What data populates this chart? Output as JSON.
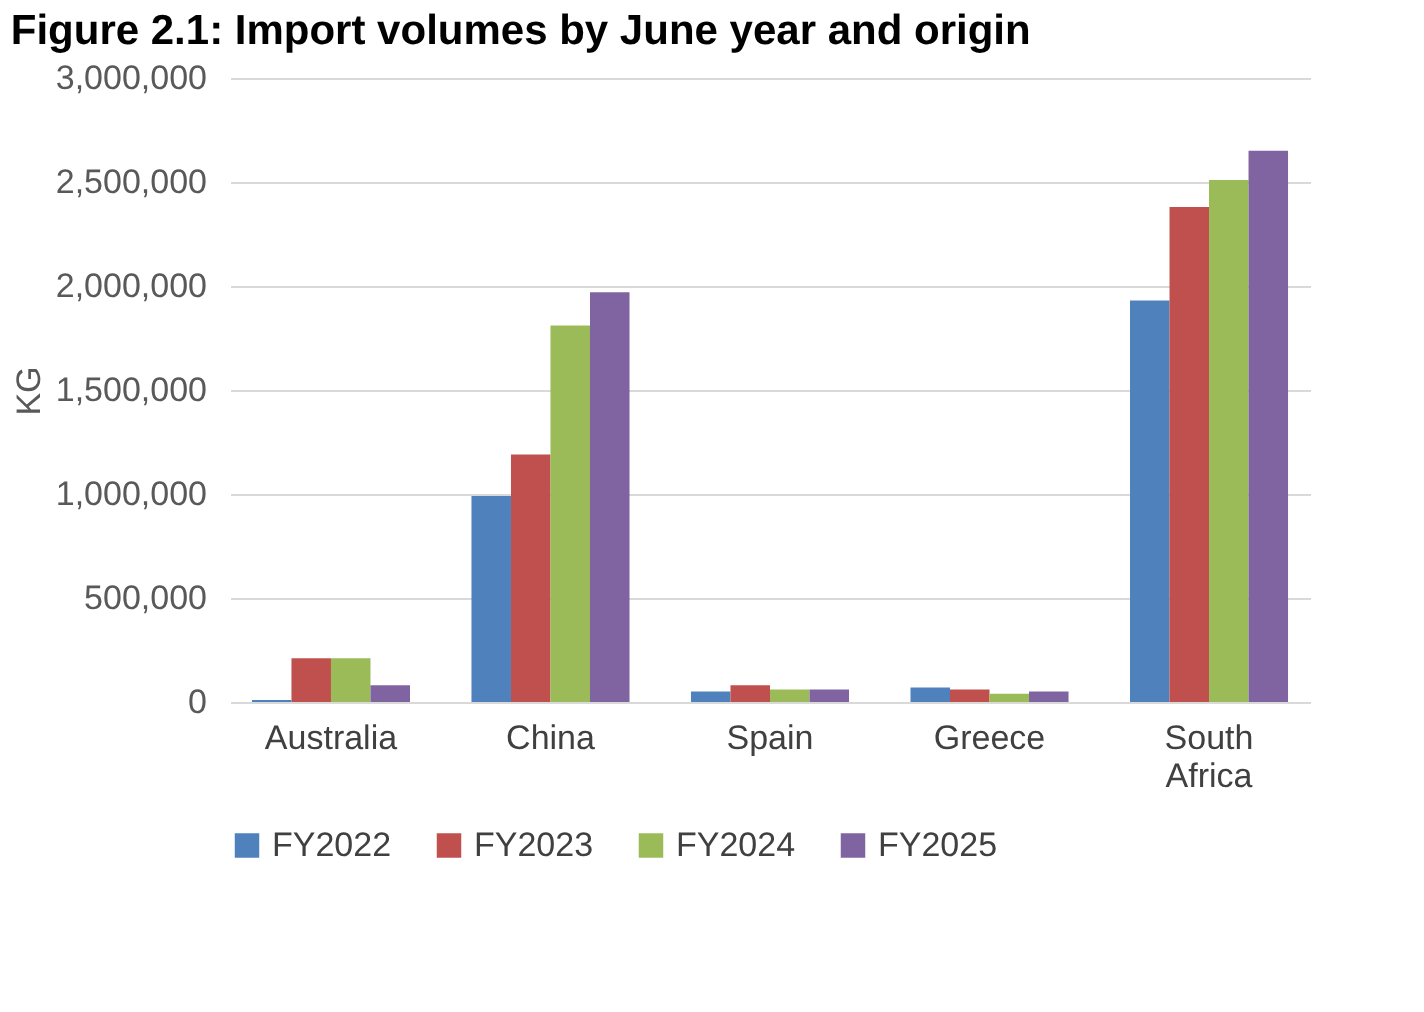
{
  "chart_data": {
    "type": "bar",
    "title": "Figure 2.1:    Import volumes by June year and origin",
    "ylabel": "KG",
    "categories": [
      "Australia",
      "China",
      "Spain",
      "Greece",
      "South Africa"
    ],
    "series": [
      {
        "name": "FY2022",
        "color": "#4f81bd",
        "values": [
          10000,
          990000,
          50000,
          70000,
          1930000
        ]
      },
      {
        "name": "FY2023",
        "color": "#c0504d",
        "values": [
          210000,
          1190000,
          80000,
          60000,
          2380000
        ]
      },
      {
        "name": "FY2024",
        "color": "#9bbb59",
        "values": [
          210000,
          1810000,
          60000,
          40000,
          2510000
        ]
      },
      {
        "name": "FY2025",
        "color": "#8064a2",
        "values": [
          80000,
          1970000,
          60000,
          50000,
          2650000
        ]
      }
    ],
    "ylim": [
      0,
      3000000
    ],
    "yticks": [
      0,
      {
        "value": 500000,
        "label": "500,000"
      },
      {
        "value": 1000000,
        "label": "1,000,000"
      },
      {
        "value": 1500000,
        "label": "1,500,000"
      },
      {
        "value": 2000000,
        "label": "2,000,000"
      },
      {
        "value": 2500000,
        "label": "2,500,000"
      },
      {
        "value": 3000000,
        "label": "3,000,000"
      }
    ],
    "grid": "y",
    "legend": "bottom"
  }
}
